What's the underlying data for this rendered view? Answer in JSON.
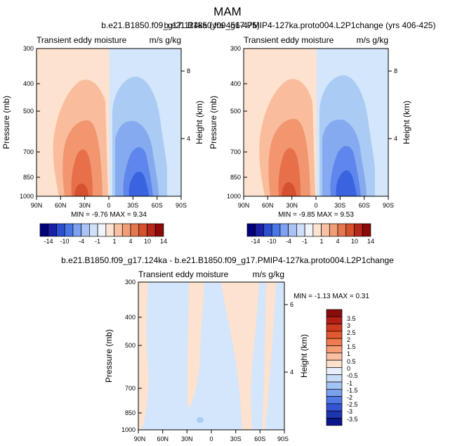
{
  "figure": {
    "title": "MAM"
  },
  "colors": {
    "pos1": "#fde2cf",
    "pos2": "#f9bd9d",
    "pos3": "#f29670",
    "pos4": "#e7704a",
    "pos5": "#d6512f",
    "neg1": "#d3e6fb",
    "neg2": "#aacbf4",
    "neg3": "#86aaf0",
    "neg4": "#5f86ec",
    "neg5": "#3a63e0"
  },
  "chart_data": [
    {
      "type": "contour",
      "title": "b.e21.B1850.f09_g17.124ka (yrs 456-475)",
      "left_string": "Transient eddy moisture",
      "right_string": "m/s g/kg",
      "xlabel": "",
      "ylabel": "Pressure (mb)",
      "ylabel_right": "Height (km)",
      "x_ticks": [
        "90N",
        "60N",
        "30N",
        "0",
        "30S",
        "60S",
        "90S"
      ],
      "y_ticks": [
        "300",
        "400",
        "500",
        "700",
        "850",
        "1000"
      ],
      "y_ticks_right": [
        "8",
        "4"
      ],
      "x_range": [
        90,
        -90
      ],
      "y_range": [
        1000,
        300
      ],
      "min": -9.76,
      "max": 9.34,
      "stats_text": "MIN =  -9.76  MAX =   9.34",
      "colorbar_levels": [
        "-14",
        "-10",
        "-4",
        "-1",
        "1",
        "4",
        "10",
        "14"
      ]
    },
    {
      "type": "contour",
      "title": "b.e21.B1850.f09_g17.PMIP4-127ka.proto004.L2P1change (yrs 406-425)",
      "left_string": "Transient eddy moisture",
      "right_string": "m/s g/kg",
      "xlabel": "",
      "ylabel": "Pressure (mb)",
      "ylabel_right": "Height (km)",
      "x_ticks": [
        "90N",
        "60N",
        "30N",
        "0",
        "30S",
        "60S",
        "90S"
      ],
      "y_ticks": [
        "300",
        "400",
        "500",
        "700",
        "850",
        "1000"
      ],
      "y_ticks_right": [
        "8",
        "4"
      ],
      "x_range": [
        90,
        -90
      ],
      "y_range": [
        1000,
        300
      ],
      "min": -9.85,
      "max": 9.53,
      "stats_text": "MIN =  -9.85  MAX =   9.53",
      "colorbar_levels": [
        "-14",
        "-10",
        "-4",
        "-1",
        "1",
        "4",
        "10",
        "14"
      ]
    },
    {
      "type": "contour",
      "title": "b.e21.B1850.f09_g17.124ka - b.e21.B1850.f09_g17.PMIP4-127ka.proto004.L2P1change",
      "left_string": "Transient eddy moisture",
      "right_string": "m/s g/kg",
      "xlabel": "",
      "ylabel": "Pressure (mb)",
      "ylabel_right": "Height (km)",
      "x_ticks": [
        "90N",
        "60N",
        "30N",
        "0",
        "30S",
        "60S",
        "90S"
      ],
      "y_ticks": [
        "300",
        "400",
        "500",
        "700",
        "850",
        "1000"
      ],
      "y_ticks_right": [
        "6",
        "4"
      ],
      "x_range": [
        90,
        -90
      ],
      "y_range": [
        1000,
        300
      ],
      "min": -1.13,
      "max": 0.31,
      "stats_text": "MIN =  -1.13  MAX =   0.31",
      "colorbar_levels": [
        "3.5",
        "3",
        "2.5",
        "2",
        "1.5",
        "1",
        "0.5",
        "0",
        "-0.5",
        "-1",
        "-1.5",
        "-2",
        "-2.5",
        "-3",
        "-3.5"
      ]
    }
  ]
}
